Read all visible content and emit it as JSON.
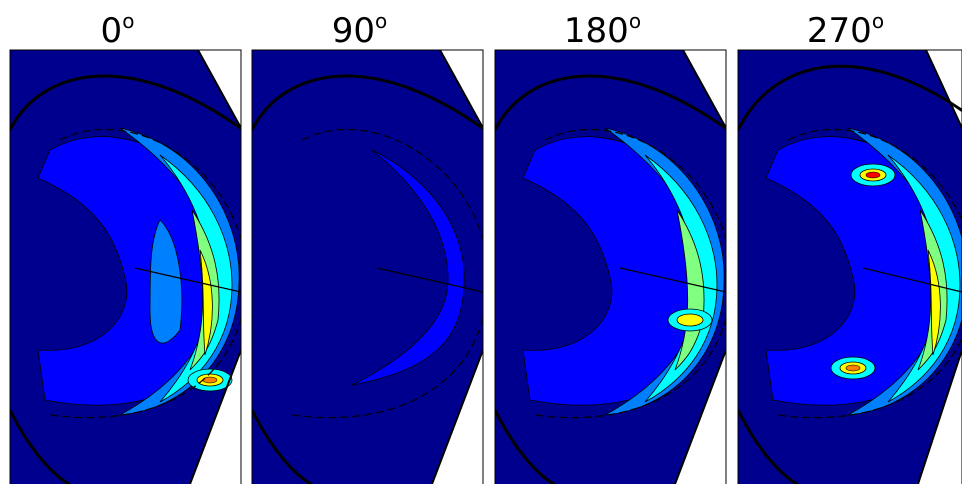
{
  "panels": [
    {
      "angle": "0",
      "unit": "o"
    },
    {
      "angle": "90",
      "unit": "o"
    },
    {
      "angle": "180",
      "unit": "o"
    },
    {
      "angle": "270",
      "unit": "o"
    }
  ]
}
